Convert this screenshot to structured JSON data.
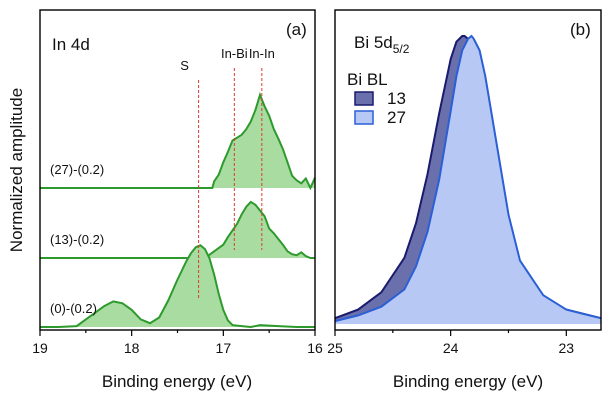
{
  "chart_data": [
    {
      "panel": "(a)",
      "type": "area",
      "title": "In 4d",
      "xlabel": "Binding energy (eV)",
      "ylabel": "Normalized amplitude",
      "xlim": [
        19,
        16
      ],
      "x_ticks": [
        19,
        18,
        17,
        16
      ],
      "x_reversed": true,
      "y_ticks_shown": false,
      "line_color": "#2e9a2e",
      "fill_color": "#a8dca0",
      "guide_color": "#e03a2a",
      "guides": [
        {
          "label": "S",
          "x": 17.27
        },
        {
          "label": "In-Bi",
          "x": 16.88
        },
        {
          "label": "In-In",
          "x": 16.58
        }
      ],
      "series": [
        {
          "name": "(27)-(0.2)",
          "offset": 2.0,
          "x": [
            19.0,
            17.12,
            17.1,
            17.05,
            17.0,
            16.95,
            16.9,
            16.85,
            16.8,
            16.75,
            16.7,
            16.65,
            16.6,
            16.55,
            16.5,
            16.45,
            16.4,
            16.35,
            16.3,
            16.25,
            16.2,
            16.15,
            16.1,
            16.05,
            16.0
          ],
          "y": [
            0.0,
            0.0,
            0.07,
            0.14,
            0.27,
            0.38,
            0.5,
            0.53,
            0.56,
            0.62,
            0.7,
            0.82,
            0.98,
            0.86,
            0.76,
            0.62,
            0.52,
            0.41,
            0.27,
            0.13,
            0.08,
            0.05,
            0.1,
            0.0,
            0.11
          ]
        },
        {
          "name": "(13)-(0.2)",
          "offset": 1.0,
          "x": [
            19.0,
            17.2,
            17.1,
            17.0,
            16.95,
            16.9,
            16.85,
            16.8,
            16.75,
            16.7,
            16.65,
            16.6,
            16.55,
            16.5,
            16.45,
            16.4,
            16.35,
            16.3,
            16.25,
            16.2,
            16.15,
            16.1,
            16.05,
            16.0
          ],
          "y": [
            0.0,
            0.0,
            0.07,
            0.14,
            0.22,
            0.29,
            0.36,
            0.46,
            0.54,
            0.59,
            0.56,
            0.5,
            0.44,
            0.31,
            0.26,
            0.2,
            0.14,
            0.07,
            0.04,
            0.03,
            0.06,
            0.02,
            0.0,
            0.0
          ]
        },
        {
          "name": "(0)-(0.2)",
          "offset": 0.0,
          "x": [
            19.0,
            18.8,
            18.6,
            18.5,
            18.4,
            18.3,
            18.2,
            18.1,
            18.0,
            17.9,
            17.8,
            17.7,
            17.6,
            17.5,
            17.45,
            17.4,
            17.35,
            17.3,
            17.25,
            17.2,
            17.15,
            17.1,
            17.05,
            17.0,
            16.95,
            16.9,
            16.8,
            16.7,
            16.6,
            16.4,
            16.2,
            16.0
          ],
          "y": [
            0.0,
            0.0,
            0.01,
            0.08,
            0.15,
            0.22,
            0.27,
            0.25,
            0.18,
            0.08,
            0.04,
            0.1,
            0.28,
            0.5,
            0.6,
            0.7,
            0.78,
            0.84,
            0.86,
            0.82,
            0.72,
            0.55,
            0.35,
            0.18,
            0.07,
            0.02,
            0.01,
            0.0,
            0.02,
            0.01,
            0.0,
            0.0
          ]
        }
      ]
    },
    {
      "panel": "(b)",
      "type": "area",
      "title": "Bi 5d5/2",
      "title_main": "Bi 5d",
      "title_sub": "5/2",
      "xlabel": "Binding energy (eV)",
      "xlim": [
        25,
        22.7
      ],
      "x_ticks": [
        25,
        24,
        23
      ],
      "x_reversed": true,
      "y_ticks_shown": false,
      "legend": {
        "title": "Bi BL",
        "position": "top-left"
      },
      "series": [
        {
          "name": "13",
          "line_color": "#1a1a6e",
          "fill_color": "#6a70ab",
          "x": [
            25.0,
            24.8,
            24.6,
            24.4,
            24.3,
            24.2,
            24.1,
            24.0,
            23.95,
            23.9,
            23.88,
            23.85,
            23.8,
            23.75,
            23.7,
            23.6,
            23.5,
            23.4,
            23.2,
            23.0,
            22.8,
            22.7
          ],
          "y": [
            0.02,
            0.05,
            0.11,
            0.23,
            0.35,
            0.52,
            0.73,
            0.92,
            0.98,
            1.0,
            1.0,
            0.99,
            0.94,
            0.86,
            0.74,
            0.52,
            0.31,
            0.19,
            0.09,
            0.05,
            0.03,
            0.02
          ]
        },
        {
          "name": "27",
          "line_color": "#2a5fd6",
          "fill_color": "#b8c8f4",
          "x": [
            25.0,
            24.8,
            24.6,
            24.4,
            24.3,
            24.2,
            24.1,
            24.0,
            23.95,
            23.9,
            23.85,
            23.82,
            23.8,
            23.75,
            23.7,
            23.6,
            23.5,
            23.4,
            23.2,
            23.0,
            22.8,
            22.7
          ],
          "y": [
            0.01,
            0.03,
            0.06,
            0.12,
            0.2,
            0.32,
            0.5,
            0.74,
            0.86,
            0.95,
            0.99,
            1.0,
            0.99,
            0.95,
            0.86,
            0.62,
            0.38,
            0.22,
            0.1,
            0.05,
            0.03,
            0.02
          ]
        }
      ]
    }
  ]
}
